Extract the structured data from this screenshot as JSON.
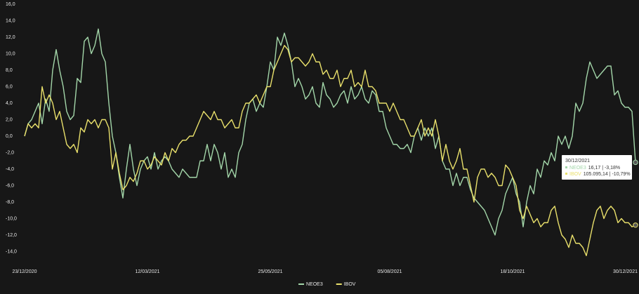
{
  "chart_data": {
    "type": "line",
    "categories": [
      "23/12/2020",
      null,
      null,
      null,
      null,
      null,
      null,
      null,
      null,
      null,
      null,
      null,
      null,
      null,
      null,
      null,
      null,
      null,
      null,
      null,
      null,
      null,
      null,
      null,
      null,
      null,
      null,
      null,
      null,
      null,
      null,
      null,
      null,
      null,
      null,
      "12/03/2021",
      null,
      null,
      null,
      null,
      null,
      null,
      null,
      null,
      null,
      null,
      null,
      null,
      null,
      null,
      null,
      null,
      null,
      null,
      null,
      null,
      null,
      null,
      null,
      null,
      null,
      null,
      null,
      null,
      null,
      null,
      null,
      null,
      null,
      null,
      "25/05/2021",
      null,
      null,
      null,
      null,
      null,
      null,
      null,
      null,
      null,
      null,
      null,
      null,
      null,
      null,
      null,
      null,
      null,
      null,
      null,
      null,
      null,
      null,
      null,
      null,
      null,
      null,
      null,
      null,
      null,
      null,
      null,
      null,
      null,
      "05/08/2021",
      null,
      null,
      null,
      null,
      null,
      null,
      null,
      null,
      null,
      null,
      null,
      null,
      null,
      null,
      null,
      null,
      null,
      null,
      null,
      null,
      null,
      null,
      null,
      null,
      null,
      null,
      null,
      null,
      null,
      null,
      null,
      null,
      null,
      null,
      "18/10/2021",
      null,
      null,
      null,
      null,
      null,
      null,
      null,
      null,
      null,
      null,
      null,
      null,
      null,
      null,
      null,
      null,
      null,
      null,
      null,
      null,
      null,
      null,
      null,
      null,
      null,
      null,
      null,
      null,
      null,
      null,
      null,
      null,
      "30/12/2021",
      null,
      null
    ],
    "series": [
      {
        "name": "NEOE3",
        "color": "#a3d6a9",
        "values": [
          0,
          1.5,
          2,
          3,
          4,
          1.5,
          4.5,
          3,
          8,
          10.5,
          8,
          6,
          3,
          2,
          2.5,
          7,
          6.5,
          11.5,
          12,
          10,
          11,
          13,
          10,
          9,
          4,
          0,
          -2,
          -5,
          -7.5,
          -4,
          -1,
          -4,
          -6,
          -4,
          -3,
          -2.5,
          -4,
          -2,
          -4,
          -3,
          -2.5,
          -3,
          -4,
          -4.5,
          -5,
          -4,
          -4.5,
          -5,
          -5,
          -5,
          -3,
          -3,
          -1,
          -3,
          -1,
          -2,
          -4,
          -2,
          -5,
          -4,
          -5,
          -2,
          -1,
          2,
          4,
          4.5,
          3,
          4,
          3.5,
          6,
          9,
          8,
          12,
          11,
          12.5,
          11,
          9,
          6,
          7,
          6,
          4.5,
          5,
          6,
          4,
          3.5,
          6.5,
          5,
          4.5,
          3.5,
          4,
          5,
          5.5,
          4,
          6,
          4.5,
          5,
          6,
          4.5,
          4,
          5.5,
          5,
          3,
          3,
          1,
          0,
          -1,
          -1,
          -1.5,
          -1.5,
          -1,
          -2,
          0,
          1,
          -0.5,
          1,
          0,
          1,
          -1.5,
          0,
          -3,
          -4,
          -4,
          -6,
          -4.5,
          -6,
          -5,
          -5,
          -6.5,
          -7.5,
          -8,
          -8.5,
          -9,
          -10,
          -11,
          -12,
          -10,
          -9,
          -7,
          -6,
          -5,
          -7,
          -8,
          -11,
          -8,
          -6,
          -7,
          -4,
          -5,
          -3,
          -3.5,
          -2,
          -3,
          0,
          -1,
          0,
          -1.5,
          0,
          4,
          3,
          4,
          7,
          9,
          8,
          7,
          7.5,
          8,
          8.5,
          8.5,
          5,
          5.5,
          4,
          3.5,
          3.5,
          3,
          -3.18
        ]
      },
      {
        "name": "IBOV",
        "color": "#e9e06b",
        "values": [
          0,
          1.5,
          1,
          1.5,
          1,
          6,
          4,
          5,
          4,
          2,
          3,
          1,
          -1,
          -1.5,
          -1,
          -2,
          1,
          0.5,
          2,
          1.5,
          2,
          1,
          2,
          2,
          1,
          -4,
          -2,
          -4.5,
          -6.5,
          -6,
          -5,
          -5.5,
          -4.5,
          -3,
          -3,
          -4,
          -3.5,
          -2.5,
          -3,
          -3.5,
          -2,
          -3,
          -1.5,
          -2,
          -1,
          -0.5,
          -0.5,
          0,
          0,
          1,
          2,
          3,
          2.5,
          2,
          3,
          2,
          2,
          1,
          1.5,
          2,
          1,
          1,
          3,
          4,
          4,
          4.5,
          5,
          4,
          5,
          6,
          6,
          8,
          9,
          10,
          11,
          10.5,
          9,
          9.5,
          9.5,
          9,
          8.5,
          9,
          10,
          9,
          9,
          7.5,
          8,
          7,
          7,
          8,
          6,
          7,
          7,
          8,
          6,
          6.5,
          6,
          8,
          6,
          6,
          5.5,
          4,
          4,
          4,
          3,
          4,
          3,
          2,
          2,
          1,
          0,
          0,
          1,
          2,
          0,
          1,
          0,
          2,
          0,
          -3,
          -1,
          -3,
          -4,
          -3,
          -1.5,
          -4,
          -4,
          -6,
          -8,
          -5,
          -4,
          -4,
          -5,
          -4.5,
          -5,
          -6,
          -6,
          -3.5,
          -4,
          -5,
          -6,
          -9,
          -10,
          -8.5,
          -9.5,
          -10.5,
          -10,
          -11,
          -10.5,
          -10.5,
          -9,
          -8.5,
          -10.5,
          -12,
          -12.5,
          -13.5,
          -12,
          -13,
          -13,
          -13.5,
          -14.5,
          -12.5,
          -10.5,
          -9,
          -8.5,
          -10,
          -9,
          -8.5,
          -9,
          -10.5,
          -10,
          -10.5,
          -10.5,
          -11,
          -10.79
        ]
      }
    ],
    "ylim": [
      -16,
      16
    ],
    "yticks": [
      {
        "value": -14,
        "label": "-14,0"
      },
      {
        "value": -12,
        "label": "-12,0"
      },
      {
        "value": -10,
        "label": "-10,0"
      },
      {
        "value": -8,
        "label": "-8,0"
      },
      {
        "value": -6,
        "label": "-6,0"
      },
      {
        "value": -4,
        "label": "-4,0"
      },
      {
        "value": -2,
        "label": "-2,0"
      },
      {
        "value": 0,
        "label": "0,0"
      },
      {
        "value": 2,
        "label": "2,0"
      },
      {
        "value": 4,
        "label": "4,0"
      },
      {
        "value": 6,
        "label": "6,0"
      },
      {
        "value": 8,
        "label": "8,0"
      },
      {
        "value": 10,
        "label": "10,0"
      },
      {
        "value": 12,
        "label": "12,0"
      },
      {
        "value": 14,
        "label": "14,0"
      },
      {
        "value": 16,
        "label": "16,0"
      }
    ],
    "grid": false,
    "legend": "bottom",
    "tooltip": {
      "date": "30/12/2021",
      "entries": [
        "16,17 | -3,18%",
        "105.095,14 | -10,79%"
      ]
    }
  }
}
